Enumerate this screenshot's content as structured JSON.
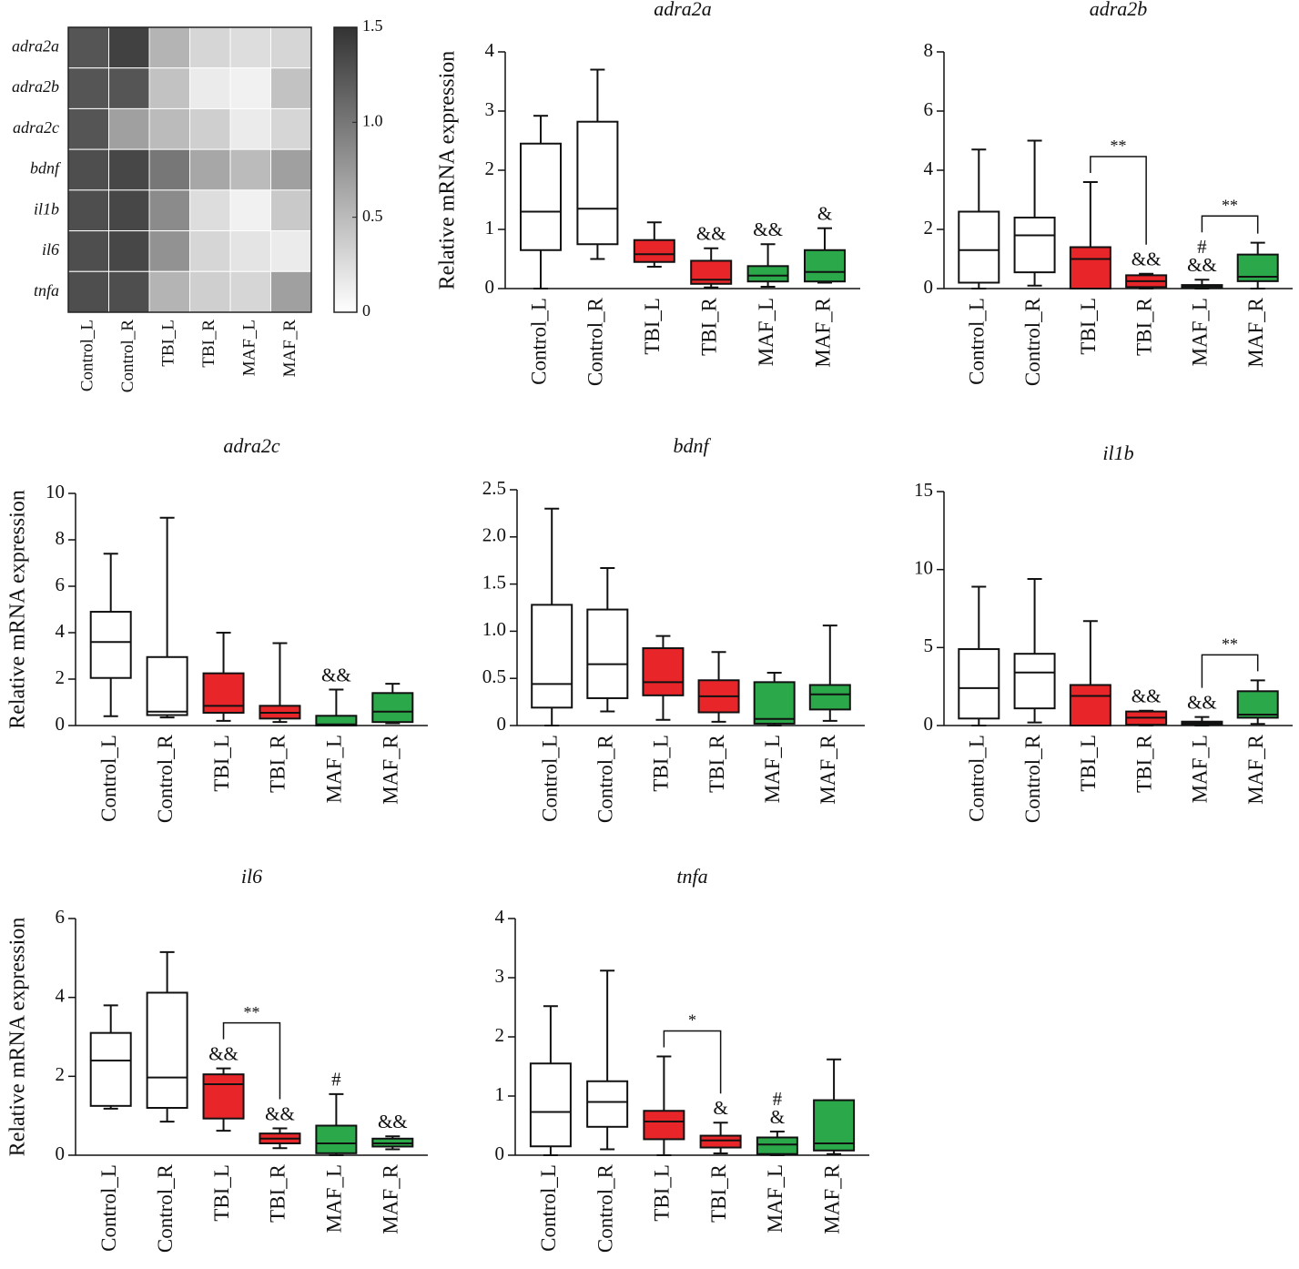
{
  "chart_data": [
    {
      "type": "heatmap",
      "rows": [
        "adra2a",
        "adra2b",
        "adra2c",
        "bdnf",
        "il1b",
        "il6",
        "tnfa"
      ],
      "columns": [
        "Control_L",
        "Control_R",
        "TBI_L",
        "TBI_R",
        "MAF_L",
        "MAF_R"
      ],
      "values": [
        [
          1.25,
          1.4,
          0.55,
          0.3,
          0.25,
          0.3
        ],
        [
          1.25,
          1.25,
          0.45,
          0.15,
          0.1,
          0.45
        ],
        [
          1.25,
          0.7,
          0.5,
          0.35,
          0.15,
          0.3
        ],
        [
          1.3,
          1.35,
          1.0,
          0.65,
          0.5,
          0.7
        ],
        [
          1.3,
          1.35,
          0.85,
          0.25,
          0.1,
          0.4
        ],
        [
          1.3,
          1.35,
          0.8,
          0.3,
          0.2,
          0.15
        ],
        [
          1.3,
          1.3,
          0.55,
          0.35,
          0.3,
          0.7
        ]
      ],
      "colors": [
        "#ffffff",
        "#333333"
      ],
      "zlim": [
        0,
        1.5
      ],
      "zticks": [
        0,
        0.5,
        {
          "value": 1,
          "label": "1.0"
        },
        1.5
      ]
    },
    {
      "type": "box",
      "title": "adra2a",
      "ylabel": "Relative mRNA expression",
      "categories": [
        "Control_L",
        "Control_R",
        "TBI_L",
        "TBI_R",
        "MAF_L",
        "MAF_R"
      ],
      "colors": [
        "#ffffff",
        "#ffffff",
        "#e8262a",
        "#e8262a",
        "#2aa84a",
        "#2aa84a"
      ],
      "boxes": [
        {
          "min": 0,
          "q1": 0.65,
          "median": 1.3,
          "q3": 2.45,
          "max": 2.92
        },
        {
          "min": 0.5,
          "q1": 0.75,
          "median": 1.35,
          "q3": 2.82,
          "max": 3.7
        },
        {
          "min": 0.37,
          "q1": 0.45,
          "median": 0.58,
          "q3": 0.82,
          "max": 1.12
        },
        {
          "min": 0.02,
          "q1": 0.08,
          "median": 0.15,
          "q3": 0.47,
          "max": 0.68
        },
        {
          "min": 0.03,
          "q1": 0.12,
          "median": 0.22,
          "q3": 0.38,
          "max": 0.75
        },
        {
          "min": 0.1,
          "q1": 0.12,
          "median": 0.28,
          "q3": 0.65,
          "max": 1.02
        }
      ],
      "ylim": [
        0,
        4
      ],
      "yticks": [
        0,
        1,
        2,
        3,
        4
      ],
      "annotations": [
        {
          "category": "TBI_R",
          "texts": [
            "&&"
          ]
        },
        {
          "category": "MAF_L",
          "texts": [
            "&&"
          ]
        },
        {
          "category": "MAF_R",
          "texts": [
            "&"
          ]
        }
      ],
      "brackets": []
    },
    {
      "type": "box",
      "title": "adra2b",
      "categories": [
        "Control_L",
        "Control_R",
        "TBI_L",
        "TBI_R",
        "MAF_L",
        "MAF_R"
      ],
      "colors": [
        "#ffffff",
        "#ffffff",
        "#e8262a",
        "#e8262a",
        "#2aa84a",
        "#2aa84a"
      ],
      "boxes": [
        {
          "min": 0,
          "q1": 0.2,
          "median": 1.3,
          "q3": 2.6,
          "max": 4.7
        },
        {
          "min": 0.1,
          "q1": 0.55,
          "median": 1.8,
          "q3": 2.4,
          "max": 5.0
        },
        {
          "min": 0,
          "q1": 0,
          "median": 1.0,
          "q3": 1.4,
          "max": 3.6
        },
        {
          "min": 0,
          "q1": 0.05,
          "median": 0.25,
          "q3": 0.45,
          "max": 0.5
        },
        {
          "min": 0,
          "q1": 0.02,
          "median": 0.08,
          "q3": 0.12,
          "max": 0.3
        },
        {
          "min": 0,
          "q1": 0.25,
          "median": 0.4,
          "q3": 1.15,
          "max": 1.55
        }
      ],
      "ylim": [
        0,
        8
      ],
      "yticks": [
        0,
        2,
        4,
        6,
        8
      ],
      "annotations": [
        {
          "category": "TBI_R",
          "texts": [
            "&&"
          ]
        },
        {
          "category": "MAF_L",
          "texts": [
            "#",
            "&&"
          ]
        }
      ],
      "brackets": [
        {
          "from": "TBI_L",
          "to": "TBI_R",
          "text": "**"
        },
        {
          "from": "MAF_L",
          "to": "MAF_R",
          "text": "**"
        }
      ]
    },
    {
      "type": "box",
      "title": "adra2c",
      "ylabel": "Relative mRNA expression",
      "categories": [
        "Control_L",
        "Control_R",
        "TBI_L",
        "TBI_R",
        "MAF_L",
        "MAF_R"
      ],
      "colors": [
        "#ffffff",
        "#ffffff",
        "#e8262a",
        "#e8262a",
        "#2aa84a",
        "#2aa84a"
      ],
      "boxes": [
        {
          "min": 0.4,
          "q1": 2.05,
          "median": 3.6,
          "q3": 4.9,
          "max": 7.4
        },
        {
          "min": 0.35,
          "q1": 0.45,
          "median": 0.6,
          "q3": 2.95,
          "max": 8.95
        },
        {
          "min": 0.2,
          "q1": 0.55,
          "median": 0.85,
          "q3": 2.25,
          "max": 4.0
        },
        {
          "min": 0.15,
          "q1": 0.3,
          "median": 0.55,
          "q3": 0.85,
          "max": 3.55
        },
        {
          "min": 0,
          "q1": 0,
          "median": 0.05,
          "q3": 0.42,
          "max": 1.55
        },
        {
          "min": 0.1,
          "q1": 0.15,
          "median": 0.6,
          "q3": 1.4,
          "max": 1.8
        }
      ],
      "ylim": [
        0,
        10
      ],
      "yticks": [
        0,
        2,
        4,
        6,
        8,
        10
      ],
      "annotations": [
        {
          "category": "MAF_L",
          "texts": [
            "&&"
          ]
        }
      ],
      "brackets": []
    },
    {
      "type": "box",
      "title": "bdnf",
      "categories": [
        "Control_L",
        "Control_R",
        "TBI_L",
        "TBI_R",
        "MAF_L",
        "MAF_R"
      ],
      "colors": [
        "#ffffff",
        "#ffffff",
        "#e8262a",
        "#e8262a",
        "#2aa84a",
        "#2aa84a"
      ],
      "boxes": [
        {
          "min": 0,
          "q1": 0.19,
          "median": 0.44,
          "q3": 1.28,
          "max": 2.3
        },
        {
          "min": 0.15,
          "q1": 0.29,
          "median": 0.65,
          "q3": 1.23,
          "max": 1.67
        },
        {
          "min": 0.06,
          "q1": 0.32,
          "median": 0.46,
          "q3": 0.82,
          "max": 0.95
        },
        {
          "min": 0.04,
          "q1": 0.14,
          "median": 0.31,
          "q3": 0.48,
          "max": 0.78
        },
        {
          "min": 0,
          "q1": 0.02,
          "median": 0.07,
          "q3": 0.46,
          "max": 0.56
        },
        {
          "min": 0.05,
          "q1": 0.17,
          "median": 0.33,
          "q3": 0.43,
          "max": 1.06
        }
      ],
      "ylim": [
        0,
        2.5
      ],
      "yticks": [
        0,
        0.5,
        {
          "value": 1,
          "label": "1.0"
        },
        1.5,
        {
          "value": 2,
          "label": "2.0"
        },
        2.5
      ],
      "annotations": [],
      "brackets": []
    },
    {
      "type": "box",
      "title": "il1b",
      "categories": [
        "Control_L",
        "Control_R",
        "TBI_L",
        "TBI_R",
        "MAF_L",
        "MAF_R"
      ],
      "colors": [
        "#ffffff",
        "#ffffff",
        "#e8262a",
        "#e8262a",
        "#2aa84a",
        "#2aa84a"
      ],
      "boxes": [
        {
          "min": 0,
          "q1": 0.45,
          "median": 2.4,
          "q3": 4.9,
          "max": 8.9
        },
        {
          "min": 0.2,
          "q1": 1.1,
          "median": 3.4,
          "q3": 4.6,
          "max": 9.4
        },
        {
          "min": 0,
          "q1": 0,
          "median": 1.9,
          "q3": 2.6,
          "max": 6.7
        },
        {
          "min": 0,
          "q1": 0.05,
          "median": 0.5,
          "q3": 0.9,
          "max": 0.95
        },
        {
          "min": 0,
          "q1": 0.05,
          "median": 0.15,
          "q3": 0.25,
          "max": 0.55
        },
        {
          "min": 0.1,
          "q1": 0.5,
          "median": 0.7,
          "q3": 2.2,
          "max": 2.9
        }
      ],
      "ylim": [
        0,
        15
      ],
      "yticks": [
        0,
        5,
        10,
        15
      ],
      "annotations": [
        {
          "category": "TBI_R",
          "texts": [
            "&&"
          ]
        },
        {
          "category": "MAF_L",
          "texts": [
            "&&"
          ]
        }
      ],
      "brackets": [
        {
          "from": "MAF_L",
          "to": "MAF_R",
          "text": "**"
        }
      ]
    },
    {
      "type": "box",
      "title": "il6",
      "ylabel": "Relative mRNA expression",
      "categories": [
        "Control_L",
        "Control_R",
        "TBI_L",
        "TBI_R",
        "MAF_L",
        "MAF_R"
      ],
      "colors": [
        "#ffffff",
        "#ffffff",
        "#e8262a",
        "#e8262a",
        "#2aa84a",
        "#2aa84a"
      ],
      "boxes": [
        {
          "min": 1.18,
          "q1": 1.25,
          "median": 2.4,
          "q3": 3.1,
          "max": 3.8
        },
        {
          "min": 0.85,
          "q1": 1.2,
          "median": 1.97,
          "q3": 4.12,
          "max": 5.15
        },
        {
          "min": 0.62,
          "q1": 0.93,
          "median": 1.8,
          "q3": 2.05,
          "max": 2.2
        },
        {
          "min": 0.18,
          "q1": 0.3,
          "median": 0.42,
          "q3": 0.55,
          "max": 0.68
        },
        {
          "min": 0,
          "q1": 0.05,
          "median": 0.3,
          "q3": 0.75,
          "max": 1.55
        },
        {
          "min": 0.15,
          "q1": 0.22,
          "median": 0.3,
          "q3": 0.42,
          "max": 0.48
        }
      ],
      "ylim": [
        0,
        6
      ],
      "yticks": [
        0,
        2,
        4,
        6
      ],
      "annotations": [
        {
          "category": "TBI_L",
          "texts": [
            "&&"
          ]
        },
        {
          "category": "TBI_R",
          "texts": [
            "&&"
          ]
        },
        {
          "category": "MAF_L",
          "texts": [
            "#"
          ]
        },
        {
          "category": "MAF_R",
          "texts": [
            "&&"
          ]
        }
      ],
      "brackets": [
        {
          "from": "TBI_L",
          "to": "TBI_R",
          "text": "**"
        }
      ]
    },
    {
      "type": "box",
      "title": "tnfa",
      "categories": [
        "Control_L",
        "Control_R",
        "TBI_L",
        "TBI_R",
        "MAF_L",
        "MAF_R"
      ],
      "colors": [
        "#ffffff",
        "#ffffff",
        "#e8262a",
        "#e8262a",
        "#2aa84a",
        "#2aa84a"
      ],
      "boxes": [
        {
          "min": 0,
          "q1": 0.15,
          "median": 0.73,
          "q3": 1.55,
          "max": 2.52
        },
        {
          "min": 0.1,
          "q1": 0.48,
          "median": 0.9,
          "q3": 1.25,
          "max": 3.12
        },
        {
          "min": 0,
          "q1": 0.27,
          "median": 0.57,
          "q3": 0.75,
          "max": 1.67
        },
        {
          "min": 0.03,
          "q1": 0.13,
          "median": 0.25,
          "q3": 0.33,
          "max": 0.55
        },
        {
          "min": 0,
          "q1": 0.02,
          "median": 0.18,
          "q3": 0.3,
          "max": 0.4
        },
        {
          "min": 0.02,
          "q1": 0.08,
          "median": 0.2,
          "q3": 0.93,
          "max": 1.62
        }
      ],
      "ylim": [
        0,
        4
      ],
      "yticks": [
        0,
        1,
        2,
        3,
        4
      ],
      "annotations": [
        {
          "category": "TBI_R",
          "texts": [
            "&"
          ]
        },
        {
          "category": "MAF_L",
          "texts": [
            "#",
            "&"
          ]
        }
      ],
      "brackets": [
        {
          "from": "TBI_L",
          "to": "TBI_R",
          "text": "*"
        }
      ]
    }
  ]
}
